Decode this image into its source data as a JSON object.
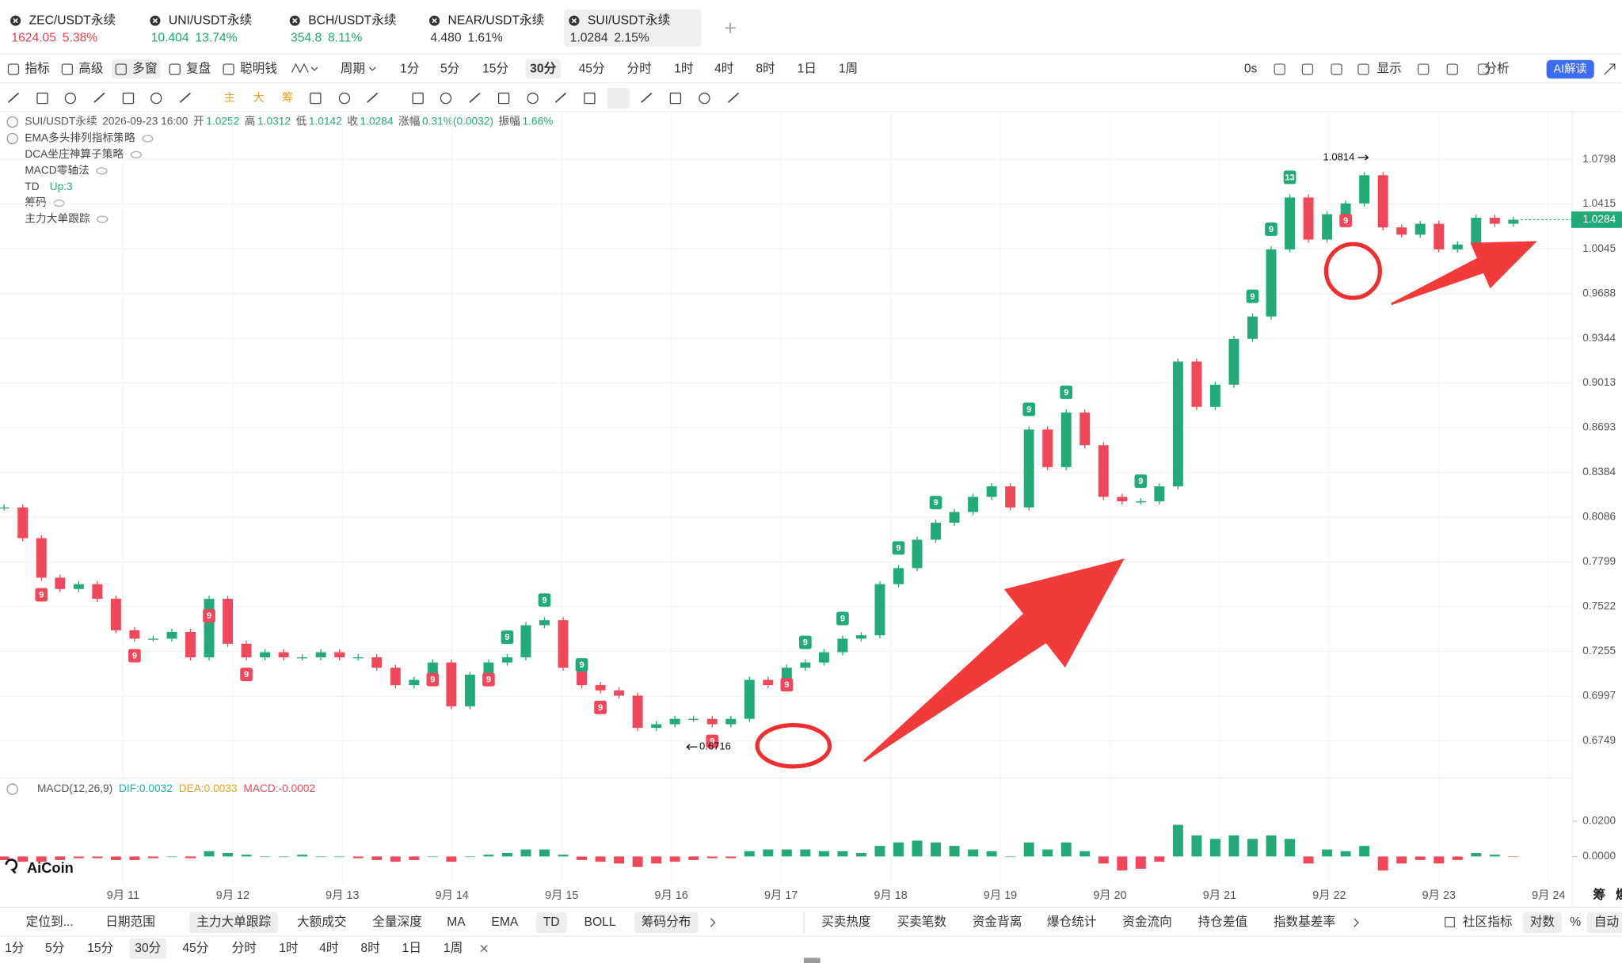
{
  "tabs": [
    {
      "symbol": "ZEC/USDT永续",
      "price": "1624.05",
      "change": "5.38%",
      "color": "#e8434f"
    },
    {
      "symbol": "UNI/USDT永续",
      "price": "10.404",
      "change": "13.74%",
      "color": "#1fa774"
    },
    {
      "symbol": "BCH/USDT永续",
      "price": "354.8",
      "change": "8.11%",
      "color": "#1fa774"
    },
    {
      "symbol": "NEAR/USDT永续",
      "price": "4.480",
      "change": "1.61%",
      "color": "#333333"
    },
    {
      "symbol": "SUI/USDT永续",
      "price": "1.0284",
      "change": "2.15%",
      "color": "#333333"
    }
  ],
  "toolbar": {
    "tools": [
      "指标",
      "高级",
      "多窗",
      "复盘",
      "聪明钱"
    ],
    "period_menu": "周期",
    "periods": [
      "1分",
      "5分",
      "15分",
      "30分",
      "45分",
      "分时",
      "1时",
      "4时",
      "8时",
      "1日",
      "1周"
    ],
    "selected": "30分",
    "right": [
      "0s",
      "显示",
      "分析"
    ],
    "ai": "AI解读"
  },
  "drawing_tools_labels": [
    "主",
    "大",
    "筹"
  ],
  "chart": {
    "info": {
      "symbol": "SUI/USDT永续",
      "time": "2026-09-23 16:00",
      "fields": [
        {
          "label": "开",
          "value": "1.0252"
        },
        {
          "label": "高",
          "value": "1.0312"
        },
        {
          "label": "低",
          "value": "1.0142"
        },
        {
          "label": "收",
          "value": "1.0284"
        },
        {
          "label": "涨幅",
          "value": "0.31%(0.0032)"
        },
        {
          "label": "振幅",
          "value": "1.66%"
        }
      ]
    },
    "indicators": [
      {
        "name": "EMA多头排列指标策略"
      },
      {
        "name": "DCA坐庄神算子策略"
      },
      {
        "name": "MACD零轴法"
      },
      {
        "name": "TD",
        "note": "Up:3"
      },
      {
        "name": "筹码"
      },
      {
        "name": "主力大单跟踪"
      }
    ],
    "log_scale": true,
    "ylim": [
      0.6561,
      1.1203
    ],
    "yticks": [
      1.0798,
      1.0415,
      1.0045,
      0.9688,
      0.9344,
      0.9013,
      0.8693,
      0.8384,
      0.8086,
      0.7799,
      0.7522,
      0.7255,
      0.6997,
      0.6749
    ],
    "up_color": "#22ab79",
    "down_color": "#f0475a",
    "closes": [
      0.815,
      0.795,
      0.77,
      0.763,
      0.766,
      0.757,
      0.738,
      0.733,
      0.733,
      0.737,
      0.722,
      0.757,
      0.73,
      0.722,
      0.725,
      0.722,
      0.722,
      0.725,
      0.722,
      0.722,
      0.716,
      0.706,
      0.709,
      0.719,
      0.694,
      0.712,
      0.719,
      0.722,
      0.741,
      0.744,
      0.716,
      0.706,
      0.703,
      0.7,
      0.682,
      0.684,
      0.687,
      0.687,
      0.684,
      0.687,
      0.709,
      0.706,
      0.716,
      0.719,
      0.725,
      0.733,
      0.735,
      0.766,
      0.776,
      0.794,
      0.805,
      0.812,
      0.822,
      0.829,
      0.815,
      0.868,
      0.842,
      0.88,
      0.857,
      0.822,
      0.819,
      0.819,
      0.829,
      0.917,
      0.884,
      0.9,
      0.934,
      0.951,
      1.004,
      1.047,
      1.012,
      1.033,
      1.042,
      1.066,
      1.022,
      1.016,
      1.025,
      1.004,
      1.008,
      1.03,
      1.025,
      1.0284
    ],
    "last_price": 1.0284,
    "high": 1.0814,
    "low": 0.6716,
    "td_marks": [
      {
        "label": "9",
        "candle": 2,
        "color": "#f0475a"
      },
      {
        "label": "9",
        "candle": 7,
        "color": "#f0475a"
      },
      {
        "label": "9",
        "candle": 11,
        "color": "#f0475a"
      },
      {
        "label": "9",
        "candle": 13,
        "color": "#f0475a"
      },
      {
        "label": "9",
        "candle": 23,
        "color": "#f0475a"
      },
      {
        "label": "9",
        "candle": 26,
        "color": "#f0475a"
      },
      {
        "label": "9",
        "candle": 32,
        "color": "#f0475a"
      },
      {
        "label": "9",
        "candle": 38,
        "color": "#f0475a"
      },
      {
        "label": "9",
        "candle": 42,
        "color": "#f0475a"
      },
      {
        "label": "9",
        "candle": 72,
        "color": "#f0475a"
      },
      {
        "label": "9",
        "candle": 27,
        "color": "#22ab79"
      },
      {
        "label": "9",
        "candle": 29,
        "color": "#22ab79"
      },
      {
        "label": "9",
        "candle": 31,
        "color": "#22ab79"
      },
      {
        "label": "9",
        "candle": 43,
        "color": "#22ab79"
      },
      {
        "label": "9",
        "candle": 45,
        "color": "#22ab79"
      },
      {
        "label": "9",
        "candle": 48,
        "color": "#22ab79"
      },
      {
        "label": "9",
        "candle": 50,
        "color": "#22ab79"
      },
      {
        "label": "9",
        "candle": 55,
        "color": "#22ab79"
      },
      {
        "label": "9",
        "candle": 57,
        "color": "#22ab79"
      },
      {
        "label": "9",
        "candle": 61,
        "color": "#22ab79"
      },
      {
        "label": "9",
        "candle": 67,
        "color": "#22ab79"
      },
      {
        "label": "9",
        "candle": 68,
        "color": "#22ab79"
      },
      {
        "label": "13",
        "candle": 69,
        "color": "#22ab79"
      }
    ],
    "dates": [
      "9月 11",
      "9月 12",
      "9月 13",
      "9月 14",
      "9月 15",
      "9月 16",
      "9月 17",
      "9月 18",
      "9月 19",
      "9月 20",
      "9月 21",
      "9月 22",
      "9月 23",
      "9月 24"
    ]
  },
  "macd": {
    "title": "MACD(12,26,9)",
    "dif": "DIF:0.0032",
    "dea": "DEA:0.0033",
    "macd": "MACD:-0.0002",
    "ylim": [
      -0.0159,
      0.0312
    ],
    "yticks": [
      {
        "value": 0.02,
        "label": "0.0200"
      },
      {
        "value": 0,
        "label": "0.0000"
      }
    ],
    "hist": [
      -0.002,
      -0.003,
      -0.003,
      -0.002,
      -0.001,
      -0.001,
      -0.002,
      -0.002,
      -0.001,
      0.0,
      -0.001,
      0.003,
      0.002,
      0.001,
      0.0,
      0.0,
      0.001,
      0.0,
      0.0,
      -0.001,
      -0.002,
      -0.003,
      -0.002,
      0.0,
      -0.003,
      0.0,
      0.001,
      0.002,
      0.004,
      0.004,
      0.001,
      -0.002,
      -0.003,
      -0.004,
      -0.006,
      -0.004,
      -0.003,
      -0.002,
      -0.001,
      -0.001,
      0.003,
      0.004,
      0.004,
      0.004,
      0.003,
      0.003,
      0.002,
      0.006,
      0.008,
      0.009,
      0.008,
      0.006,
      0.004,
      0.003,
      0.0,
      0.008,
      0.004,
      0.008,
      0.003,
      -0.004,
      -0.008,
      -0.007,
      -0.003,
      0.018,
      0.012,
      0.01,
      0.012,
      0.01,
      0.012,
      0.01,
      -0.004,
      0.004,
      0.003,
      0.006,
      -0.008,
      -0.004,
      -0.002,
      -0.004,
      -0.002,
      0.002,
      0.001,
      -0.0002
    ]
  },
  "watermark": "AiCoin",
  "side_labels": [
    "筹",
    "爆"
  ],
  "bottom_bar": {
    "items": [
      "定位到...",
      "日期范围",
      "主力大单跟踪",
      "大额成交",
      "全量深度",
      "MA",
      "EMA",
      "TD",
      "BOLL",
      "筹码分布",
      "买卖热度",
      "买卖笔数",
      "资金背离",
      "爆仓统计",
      "资金流向",
      "持仓差值",
      "指数基差率",
      "社区指标",
      "对数",
      "%",
      "自动"
    ],
    "active": [
      "主力大单跟踪",
      "TD",
      "筹码分布",
      "对数",
      "自动"
    ]
  },
  "period_bar": {
    "periods": [
      "1分",
      "5分",
      "15分",
      "30分",
      "45分",
      "分时",
      "1时",
      "4时",
      "8时",
      "1日",
      "1周"
    ],
    "selected": "30分"
  }
}
